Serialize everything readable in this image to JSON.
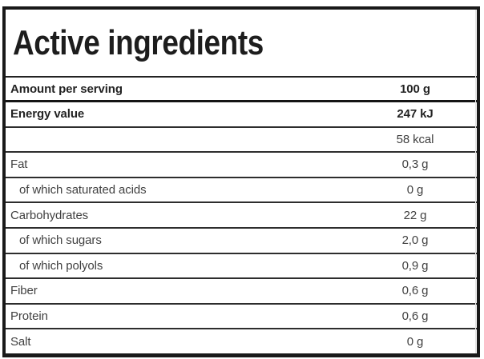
{
  "title": "Active ingredients",
  "colors": {
    "outer_border": "#191919",
    "row_separator": "#2d2d2d",
    "text_bold": "#232323",
    "text_regular": "#414141",
    "background": "#ffffff"
  },
  "header_row": {
    "label": "Amount per serving",
    "value": "100 g"
  },
  "rows": [
    {
      "label": "Energy value",
      "value": "247 kJ",
      "bold": true,
      "indent": false
    },
    {
      "label": "",
      "value": "58 kcal",
      "bold": false,
      "indent": false
    },
    {
      "label": "Fat",
      "value": "0,3 g",
      "bold": false,
      "indent": false
    },
    {
      "label": "of which saturated acids",
      "value": "0 g",
      "bold": false,
      "indent": true
    },
    {
      "label": "Carbohydrates",
      "value": "22 g",
      "bold": false,
      "indent": false
    },
    {
      "label": "of which sugars",
      "value": "2,0 g",
      "bold": false,
      "indent": true
    },
    {
      "label": "of which polyols",
      "value": "0,9 g",
      "bold": false,
      "indent": true
    },
    {
      "label": "Fiber",
      "value": "0,6 g",
      "bold": false,
      "indent": false
    },
    {
      "label": "Protein",
      "value": "0,6 g",
      "bold": false,
      "indent": false
    },
    {
      "label": "Salt",
      "value": "0 g",
      "bold": false,
      "indent": false
    }
  ]
}
